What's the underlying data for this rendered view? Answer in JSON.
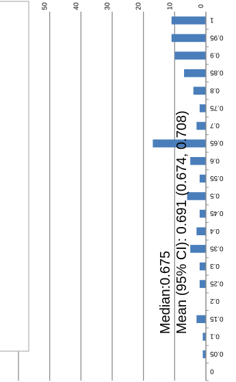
{
  "chart_data": {
    "type": "bar",
    "orientation": "horizontal",
    "rotated_180": true,
    "categories": [
      "0",
      "0.05",
      "0.1",
      "0.15",
      "0.2",
      "0.25",
      "0.3",
      "0.35",
      "0.4",
      "0.45",
      "0.5",
      "0.55",
      "0.6",
      "0.65",
      "0.7",
      "0.75",
      "0.8",
      "0.85",
      "0.9",
      "0.95",
      "1"
    ],
    "series": [
      {
        "values": [
          0,
          1,
          1,
          3,
          0,
          2,
          2,
          5,
          3,
          2,
          6,
          2,
          5,
          17,
          3,
          2,
          4,
          7,
          10,
          11,
          11
        ],
        "color": "#4a7ebb"
      }
    ],
    "xlim": [
      0,
      60
    ],
    "ticks": [
      "0",
      "10",
      "20",
      "30",
      "40",
      "50",
      "60"
    ],
    "grid": true,
    "annotation": {
      "line1": "Mean (95% CI): 0.691 (0.674, 0.708)",
      "line2": "Median:0.675"
    }
  }
}
